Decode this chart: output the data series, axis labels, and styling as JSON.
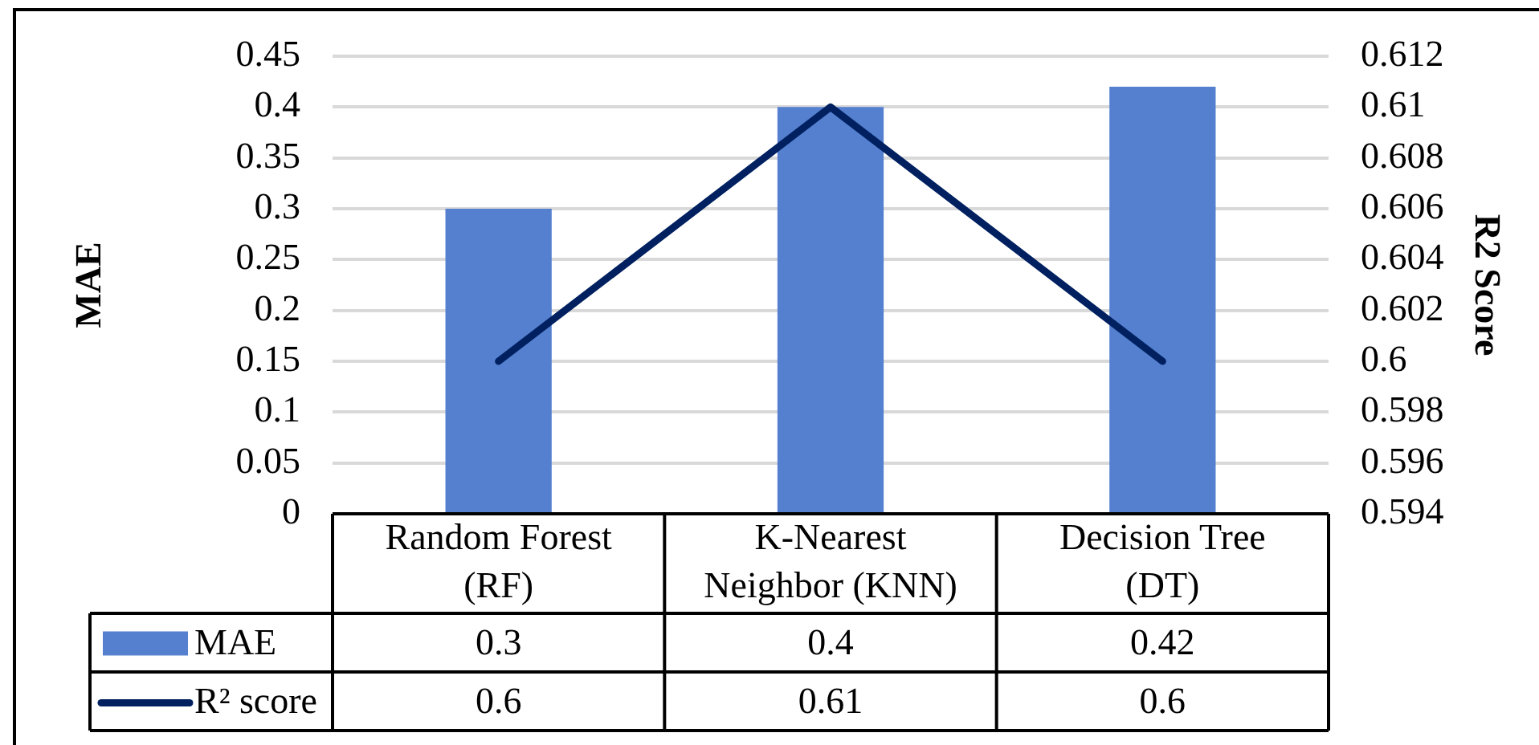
{
  "chart_data": {
    "type": "bar",
    "categories": [
      "Random Forest (RF)",
      "K-Nearest Neighbor (KNN)",
      "Decision Tree (DT)"
    ],
    "series": [
      {
        "name": "MAE",
        "color": "#5480cf",
        "values": [
          0.3,
          0.4,
          0.42
        ]
      },
      {
        "name": "R² score",
        "type": "line",
        "axis": "y2",
        "color": "#002060",
        "values": [
          0.6,
          0.61,
          0.6
        ]
      }
    ],
    "ylabel": "MAE",
    "y2label": "R2 Score",
    "ylim": [
      0,
      0.45
    ],
    "yticks": [
      0,
      0.05,
      0.1,
      0.15,
      0.2,
      0.25,
      0.3,
      0.35,
      0.4,
      0.45
    ],
    "y2lim": [
      0.594,
      0.612
    ],
    "y2ticks": [
      0.594,
      0.596,
      0.598,
      0.6,
      0.602,
      0.604,
      0.606,
      0.608,
      0.61,
      0.612
    ],
    "grid": "y",
    "legend": "bottom",
    "data_labels": true,
    "marker": "none",
    "line_style": "solid"
  }
}
